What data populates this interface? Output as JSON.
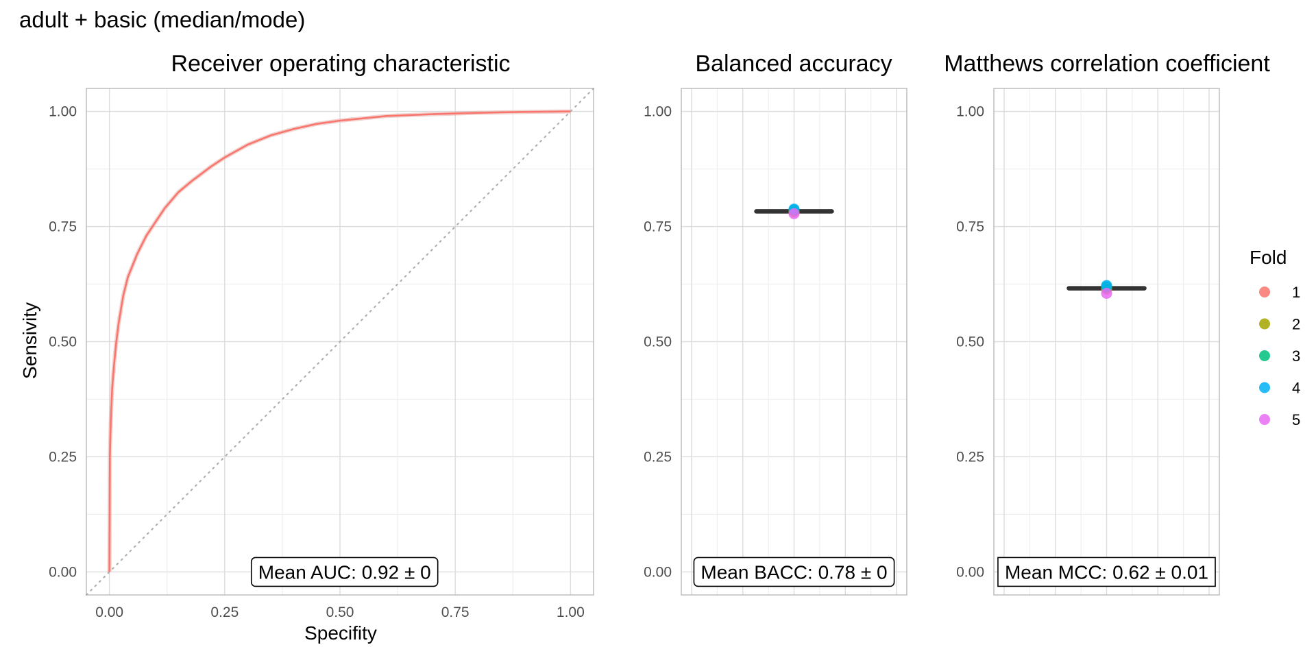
{
  "figure": {
    "title": "adult + basic (median/mode)"
  },
  "chart_data": [
    {
      "type": "line",
      "title": "Receiver operating characteristic",
      "xlabel": "Specifity",
      "ylabel": "Sensivity",
      "xlim": [
        -0.05,
        1.05
      ],
      "ylim": [
        -0.05,
        1.05
      ],
      "x_ticks": [
        0,
        0.25,
        0.5,
        0.75,
        1
      ],
      "x_tick_labels": [
        "0.00",
        "0.25",
        "0.50",
        "0.75",
        "1.00"
      ],
      "y_ticks": [
        0,
        0.25,
        0.5,
        0.75,
        1
      ],
      "y_tick_labels": [
        "0.00",
        "0.25",
        "0.50",
        "0.75",
        "1.00"
      ],
      "grid": true,
      "reference_line": {
        "x": [
          0,
          1
        ],
        "y": [
          0,
          1
        ],
        "style": "dotted"
      },
      "series": [
        {
          "color": "#F8766D",
          "x": [
            0,
            0.001,
            0.003,
            0.006,
            0.01,
            0.015,
            0.02,
            0.03,
            0.04,
            0.05,
            0.06,
            0.07,
            0.08,
            0.1,
            0.12,
            0.15,
            0.18,
            0.2,
            0.22,
            0.25,
            0.3,
            0.35,
            0.4,
            0.45,
            0.5,
            0.55,
            0.6,
            0.7,
            0.8,
            0.9,
            1
          ],
          "y": [
            0,
            0.25,
            0.33,
            0.4,
            0.45,
            0.5,
            0.54,
            0.6,
            0.64,
            0.665,
            0.69,
            0.71,
            0.73,
            0.76,
            0.79,
            0.825,
            0.85,
            0.865,
            0.88,
            0.9,
            0.928,
            0.948,
            0.962,
            0.973,
            0.98,
            0.985,
            0.99,
            0.994,
            0.997,
            0.999,
            1
          ]
        }
      ],
      "annotation": "Mean AUC:  0.92 ± 0"
    },
    {
      "type": "scatter",
      "title": "Balanced accuracy",
      "ylim": [
        -0.05,
        1.05
      ],
      "y_ticks": [
        0,
        0.25,
        0.5,
        0.75,
        1
      ],
      "y_tick_labels": [
        "0.00",
        "0.25",
        "0.50",
        "0.75",
        "1.00"
      ],
      "grid": true,
      "median": 0.783,
      "series": [
        {
          "name": "1",
          "values": [
            0.782
          ]
        },
        {
          "name": "2",
          "values": [
            0.784
          ]
        },
        {
          "name": "3",
          "values": [
            0.786
          ]
        },
        {
          "name": "4",
          "values": [
            0.788
          ]
        },
        {
          "name": "5",
          "values": [
            0.778
          ]
        }
      ],
      "annotation": "Mean BACC:  0.78 ± 0"
    },
    {
      "type": "scatter",
      "title": "Matthews correlation coefficient",
      "ylim": [
        -0.05,
        1.05
      ],
      "y_ticks": [
        0,
        0.25,
        0.5,
        0.75,
        1
      ],
      "y_tick_labels": [
        "0.00",
        "0.25",
        "0.50",
        "0.75",
        "1.00"
      ],
      "grid": true,
      "median": 0.616,
      "series": [
        {
          "name": "1",
          "values": [
            0.614
          ]
        },
        {
          "name": "2",
          "values": [
            0.617
          ]
        },
        {
          "name": "3",
          "values": [
            0.619
          ]
        },
        {
          "name": "4",
          "values": [
            0.622
          ]
        },
        {
          "name": "5",
          "values": [
            0.605
          ]
        }
      ],
      "annotation": "Mean MCC:  0.62 ± 0.01"
    }
  ],
  "legend": {
    "title": "Fold",
    "placement": "right",
    "items": [
      {
        "label": "1",
        "color": "#F8766D"
      },
      {
        "label": "2",
        "color": "#A3A500"
      },
      {
        "label": "3",
        "color": "#00BF7D"
      },
      {
        "label": "4",
        "color": "#00B0F6"
      },
      {
        "label": "5",
        "color": "#E76BF3"
      }
    ]
  }
}
